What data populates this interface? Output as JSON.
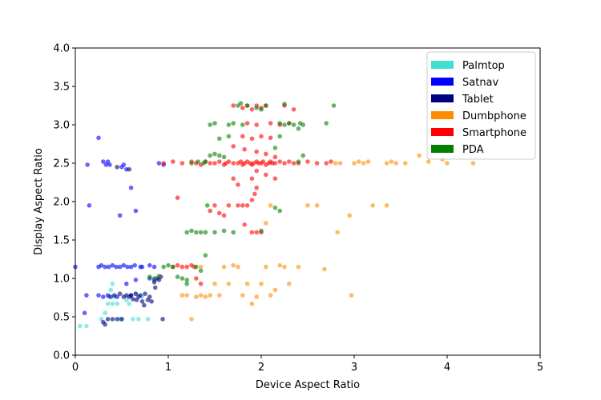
{
  "chart_data": {
    "type": "scatter",
    "title": "",
    "xlabel": "Device Aspect Ratio",
    "ylabel": "Display Aspect Ratio",
    "xlim": [
      0,
      5
    ],
    "ylim": [
      0,
      4
    ],
    "xticks": [
      "0",
      "1",
      "2",
      "3",
      "4",
      "5"
    ],
    "yticks": [
      "0.0",
      "0.5",
      "1.0",
      "1.5",
      "2.0",
      "2.5",
      "3.0",
      "3.5",
      "4.0"
    ],
    "grid": false,
    "legend_position": "top-right",
    "series": [
      {
        "name": "Palmtop",
        "color": "#40e0d0",
        "points": [
          [
            0.05,
            0.38
          ],
          [
            0.12,
            0.38
          ],
          [
            0.28,
            0.47
          ],
          [
            0.32,
            0.55
          ],
          [
            0.35,
            0.67
          ],
          [
            0.38,
            0.85
          ],
          [
            0.4,
            0.67
          ],
          [
            0.42,
            0.76
          ],
          [
            0.45,
            0.67
          ],
          [
            0.48,
            0.47
          ],
          [
            0.5,
            0.47
          ],
          [
            0.55,
            0.72
          ],
          [
            0.58,
            0.67
          ],
          [
            0.62,
            0.47
          ],
          [
            0.65,
            0.8
          ],
          [
            0.68,
            0.47
          ],
          [
            0.72,
            0.76
          ],
          [
            0.78,
            0.47
          ],
          [
            0.4,
            0.93
          ],
          [
            0.36,
            0.76
          ]
        ]
      },
      {
        "name": "Satnav",
        "color": "#0000ff",
        "points": [
          [
            0.0,
            1.15
          ],
          [
            0.1,
            0.55
          ],
          [
            0.12,
            0.78
          ],
          [
            0.13,
            2.48
          ],
          [
            0.15,
            1.95
          ],
          [
            0.25,
            2.83
          ],
          [
            0.3,
            2.52
          ],
          [
            0.33,
            2.48
          ],
          [
            0.35,
            2.52
          ],
          [
            0.37,
            2.48
          ],
          [
            0.48,
            1.82
          ],
          [
            0.5,
            2.45
          ],
          [
            0.52,
            2.48
          ],
          [
            0.55,
            2.42
          ],
          [
            0.6,
            2.18
          ],
          [
            0.65,
            1.88
          ],
          [
            0.25,
            1.15
          ],
          [
            0.28,
            1.17
          ],
          [
            0.32,
            1.15
          ],
          [
            0.36,
            1.15
          ],
          [
            0.4,
            1.17
          ],
          [
            0.44,
            1.15
          ],
          [
            0.48,
            1.15
          ],
          [
            0.52,
            1.17
          ],
          [
            0.56,
            1.15
          ],
          [
            0.6,
            1.15
          ],
          [
            0.64,
            1.17
          ],
          [
            0.7,
            1.15
          ],
          [
            0.72,
            1.15
          ],
          [
            0.8,
            1.17
          ],
          [
            0.85,
            1.15
          ],
          [
            0.9,
            2.5
          ],
          [
            0.95,
            2.48
          ],
          [
            0.25,
            0.78
          ],
          [
            0.3,
            0.76
          ],
          [
            0.35,
            0.78
          ],
          [
            0.45,
            0.76
          ],
          [
            0.55,
            0.93
          ],
          [
            0.6,
            0.78
          ],
          [
            0.65,
            0.98
          ],
          [
            0.8,
            1.0
          ],
          [
            0.85,
            0.98
          ]
        ]
      },
      {
        "name": "Tablet",
        "color": "#000080",
        "points": [
          [
            0.3,
            0.43
          ],
          [
            0.32,
            0.4
          ],
          [
            0.35,
            0.47
          ],
          [
            0.4,
            0.47
          ],
          [
            0.45,
            0.47
          ],
          [
            0.5,
            0.47
          ],
          [
            0.52,
            0.76
          ],
          [
            0.55,
            0.78
          ],
          [
            0.58,
            0.76
          ],
          [
            0.6,
            0.78
          ],
          [
            0.62,
            0.73
          ],
          [
            0.65,
            0.8
          ],
          [
            0.68,
            0.76
          ],
          [
            0.7,
            0.78
          ],
          [
            0.72,
            0.7
          ],
          [
            0.75,
            0.8
          ],
          [
            0.78,
            0.72
          ],
          [
            0.8,
            0.76
          ],
          [
            0.82,
            0.7
          ],
          [
            0.85,
            0.95
          ],
          [
            0.88,
            1.0
          ],
          [
            0.9,
            0.98
          ],
          [
            0.92,
            1.02
          ],
          [
            0.94,
            0.47
          ],
          [
            0.58,
            2.42
          ],
          [
            0.45,
            2.45
          ],
          [
            0.42,
            0.78
          ],
          [
            0.38,
            0.76
          ],
          [
            0.48,
            0.8
          ],
          [
            0.66,
            0.72
          ],
          [
            0.74,
            0.65
          ],
          [
            0.86,
            0.88
          ]
        ]
      },
      {
        "name": "Dumbphone",
        "color": "#ff8c00",
        "points": [
          [
            1.15,
            0.78
          ],
          [
            1.2,
            0.78
          ],
          [
            1.25,
            0.47
          ],
          [
            1.3,
            0.76
          ],
          [
            1.35,
            0.78
          ],
          [
            1.4,
            0.76
          ],
          [
            1.45,
            0.78
          ],
          [
            1.5,
            0.93
          ],
          [
            1.55,
            0.78
          ],
          [
            1.6,
            1.15
          ],
          [
            1.65,
            0.93
          ],
          [
            1.7,
            1.17
          ],
          [
            1.75,
            1.15
          ],
          [
            1.8,
            0.78
          ],
          [
            1.85,
            0.93
          ],
          [
            1.9,
            0.67
          ],
          [
            1.95,
            0.76
          ],
          [
            2.0,
            0.93
          ],
          [
            2.05,
            1.15
          ],
          [
            2.1,
            0.78
          ],
          [
            2.15,
            0.85
          ],
          [
            2.2,
            1.17
          ],
          [
            2.25,
            1.15
          ],
          [
            2.3,
            0.93
          ],
          [
            2.4,
            1.15
          ],
          [
            2.5,
            1.95
          ],
          [
            2.6,
            1.95
          ],
          [
            2.68,
            1.12
          ],
          [
            2.8,
            2.5
          ],
          [
            2.82,
            1.6
          ],
          [
            2.85,
            2.5
          ],
          [
            2.95,
            1.82
          ],
          [
            2.97,
            0.78
          ],
          [
            3.0,
            2.5
          ],
          [
            3.05,
            2.52
          ],
          [
            3.1,
            2.5
          ],
          [
            3.15,
            2.52
          ],
          [
            3.2,
            1.95
          ],
          [
            3.35,
            2.5
          ],
          [
            3.4,
            2.52
          ],
          [
            3.45,
            2.5
          ],
          [
            3.55,
            2.5
          ],
          [
            3.7,
            2.6
          ],
          [
            3.8,
            2.52
          ],
          [
            3.95,
            2.55
          ],
          [
            4.0,
            2.5
          ],
          [
            4.28,
            2.5
          ],
          [
            3.35,
            1.95
          ],
          [
            2.1,
            1.95
          ],
          [
            2.05,
            1.72
          ],
          [
            1.35,
            1.15
          ]
        ]
      },
      {
        "name": "Smartphone",
        "color": "#ff0000",
        "points": [
          [
            0.95,
            2.5
          ],
          [
            1.05,
            2.52
          ],
          [
            1.1,
            2.05
          ],
          [
            1.15,
            2.5
          ],
          [
            1.25,
            2.52
          ],
          [
            1.3,
            2.5
          ],
          [
            1.35,
            2.48
          ],
          [
            1.4,
            2.52
          ],
          [
            1.45,
            2.5
          ],
          [
            1.5,
            2.5
          ],
          [
            1.55,
            2.52
          ],
          [
            1.6,
            2.48
          ],
          [
            1.62,
            2.5
          ],
          [
            1.65,
            2.52
          ],
          [
            1.7,
            2.5
          ],
          [
            1.75,
            2.5
          ],
          [
            1.78,
            2.52
          ],
          [
            1.8,
            2.48
          ],
          [
            1.82,
            2.5
          ],
          [
            1.85,
            2.52
          ],
          [
            1.88,
            2.5
          ],
          [
            1.9,
            2.48
          ],
          [
            1.92,
            2.5
          ],
          [
            1.95,
            2.52
          ],
          [
            1.97,
            2.5
          ],
          [
            2.0,
            2.5
          ],
          [
            2.02,
            2.52
          ],
          [
            2.05,
            2.48
          ],
          [
            2.08,
            2.5
          ],
          [
            2.1,
            2.52
          ],
          [
            2.12,
            2.5
          ],
          [
            2.15,
            2.5
          ],
          [
            2.2,
            2.52
          ],
          [
            2.25,
            2.5
          ],
          [
            2.3,
            2.52
          ],
          [
            2.35,
            2.5
          ],
          [
            2.4,
            2.5
          ],
          [
            2.5,
            2.52
          ],
          [
            2.6,
            2.5
          ],
          [
            2.7,
            2.5
          ],
          [
            2.75,
            2.52
          ],
          [
            1.7,
            3.25
          ],
          [
            1.8,
            3.22
          ],
          [
            1.85,
            3.25
          ],
          [
            1.9,
            3.2
          ],
          [
            1.95,
            3.25
          ],
          [
            2.0,
            3.22
          ],
          [
            2.05,
            3.25
          ],
          [
            2.25,
            3.25
          ],
          [
            2.35,
            3.2
          ],
          [
            1.85,
            3.02
          ],
          [
            1.95,
            3.0
          ],
          [
            2.1,
            3.02
          ],
          [
            2.2,
            3.0
          ],
          [
            2.3,
            3.02
          ],
          [
            1.8,
            2.85
          ],
          [
            1.9,
            2.82
          ],
          [
            2.0,
            2.85
          ],
          [
            2.1,
            2.83
          ],
          [
            1.7,
            2.72
          ],
          [
            1.82,
            2.68
          ],
          [
            1.95,
            2.65
          ],
          [
            2.05,
            2.62
          ],
          [
            2.15,
            2.58
          ],
          [
            1.95,
            2.4
          ],
          [
            2.05,
            2.35
          ],
          [
            2.15,
            2.3
          ],
          [
            1.7,
            2.3
          ],
          [
            1.75,
            2.22
          ],
          [
            1.9,
            2.3
          ],
          [
            1.95,
            2.18
          ],
          [
            1.93,
            2.1
          ],
          [
            1.9,
            2.02
          ],
          [
            1.8,
            1.95
          ],
          [
            1.85,
            1.95
          ],
          [
            1.65,
            1.95
          ],
          [
            1.75,
            1.95
          ],
          [
            1.55,
            1.85
          ],
          [
            1.45,
            1.88
          ],
          [
            1.5,
            1.95
          ],
          [
            1.6,
            1.82
          ],
          [
            1.9,
            1.6
          ],
          [
            1.95,
            1.6
          ],
          [
            2.0,
            1.6
          ],
          [
            1.82,
            1.7
          ],
          [
            1.05,
            1.15
          ],
          [
            1.1,
            1.17
          ],
          [
            1.15,
            1.15
          ],
          [
            1.2,
            1.15
          ],
          [
            1.25,
            1.17
          ],
          [
            1.28,
            1.15
          ],
          [
            1.3,
            1.0
          ],
          [
            1.35,
            0.93
          ]
        ]
      },
      {
        "name": "PDA",
        "color": "#008000",
        "points": [
          [
            0.8,
            1.02
          ],
          [
            0.85,
            1.0
          ],
          [
            0.9,
            1.03
          ],
          [
            0.95,
            1.15
          ],
          [
            1.0,
            1.17
          ],
          [
            1.05,
            1.15
          ],
          [
            1.1,
            1.02
          ],
          [
            1.15,
            1.0
          ],
          [
            1.2,
            0.93
          ],
          [
            1.2,
            1.6
          ],
          [
            1.25,
            1.62
          ],
          [
            1.3,
            1.6
          ],
          [
            1.35,
            1.6
          ],
          [
            1.4,
            1.6
          ],
          [
            1.5,
            1.6
          ],
          [
            1.6,
            1.62
          ],
          [
            1.7,
            1.6
          ],
          [
            1.42,
            1.95
          ],
          [
            1.45,
            2.6
          ],
          [
            1.5,
            2.62
          ],
          [
            1.55,
            2.6
          ],
          [
            1.6,
            2.58
          ],
          [
            1.25,
            2.5
          ],
          [
            1.32,
            2.52
          ],
          [
            1.38,
            2.5
          ],
          [
            1.4,
            2.52
          ],
          [
            1.45,
            3.0
          ],
          [
            1.5,
            3.02
          ],
          [
            1.65,
            3.0
          ],
          [
            1.7,
            3.02
          ],
          [
            1.8,
            3.0
          ],
          [
            1.75,
            3.25
          ],
          [
            1.78,
            3.28
          ],
          [
            1.85,
            3.25
          ],
          [
            1.95,
            3.22
          ],
          [
            2.0,
            3.2
          ],
          [
            2.05,
            3.25
          ],
          [
            2.25,
            3.27
          ],
          [
            2.2,
            3.02
          ],
          [
            2.25,
            3.0
          ],
          [
            2.3,
            3.02
          ],
          [
            2.35,
            3.0
          ],
          [
            2.4,
            2.95
          ],
          [
            2.45,
            3.0
          ],
          [
            2.42,
            3.02
          ],
          [
            2.7,
            3.02
          ],
          [
            2.78,
            3.25
          ],
          [
            2.45,
            2.6
          ],
          [
            2.4,
            2.52
          ],
          [
            2.2,
            2.85
          ],
          [
            2.15,
            2.7
          ],
          [
            1.55,
            2.82
          ],
          [
            1.65,
            2.85
          ],
          [
            2.15,
            1.92
          ],
          [
            2.2,
            1.88
          ],
          [
            2.0,
            1.62
          ],
          [
            1.4,
            1.3
          ],
          [
            1.35,
            1.1
          ],
          [
            1.3,
            1.15
          ],
          [
            1.2,
            0.98
          ]
        ]
      }
    ]
  }
}
